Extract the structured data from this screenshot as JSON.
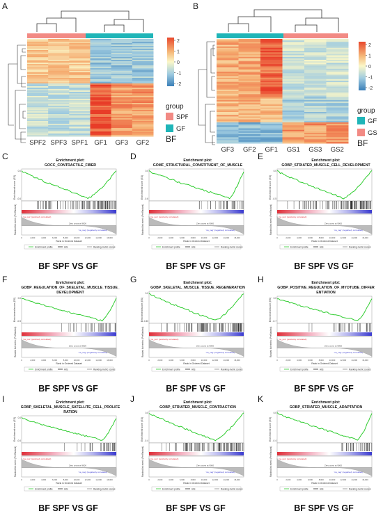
{
  "panels": [
    {
      "letter": "A"
    },
    {
      "letter": "B"
    },
    {
      "letter": "C"
    },
    {
      "letter": "D"
    },
    {
      "letter": "E"
    },
    {
      "letter": "F"
    },
    {
      "letter": "G"
    },
    {
      "letter": "H"
    },
    {
      "letter": "I"
    },
    {
      "letter": "J"
    },
    {
      "letter": "K"
    }
  ],
  "heatmapA": {
    "columns": [
      "SPF2",
      "SPF3",
      "SPF1",
      "GF1",
      "GF3",
      "GF2"
    ],
    "legend_ticks": [
      "2",
      "1",
      "0",
      "-1",
      "-2"
    ],
    "group_title": "group",
    "groups": [
      {
        "name": "SPF",
        "color": "#f28a84"
      },
      {
        "name": "GF",
        "color": "#1fb5b8"
      }
    ],
    "tissue": "BF"
  },
  "heatmapB": {
    "columns": [
      "GF3",
      "GF2",
      "GF1",
      "GS1",
      "GS3",
      "GS2"
    ],
    "legend_ticks": [
      "2",
      "1",
      "0",
      "-1",
      "-2"
    ],
    "group_title": "group",
    "groups": [
      {
        "name": "GF",
        "color": "#1fb5b8"
      },
      {
        "name": "GS",
        "color": "#f28a84"
      }
    ],
    "tissue": "BF"
  },
  "gsea": [
    {
      "letter": "C",
      "header": "Enrichment plot:",
      "title1": "GOCC_CONTRACTILE_FIBER",
      "title2": "",
      "caption": "BF SPF VS GF",
      "mode": "up",
      "ymin": "-0.6"
    },
    {
      "letter": "D",
      "header": "Enrichment plot:",
      "title1": "GOMF_STRUCTURAL_CONSTITUENT_OF_MUSCLE",
      "title2": "",
      "caption": "BF SPF VS GF",
      "mode": "late",
      "ymin": "-0.6"
    },
    {
      "letter": "E",
      "header": "Enrichment plot:",
      "title1": "GOBP_STRIATED_MUSCLE_CELL_DEVELOPMENT",
      "title2": "",
      "caption": "BF SPF VS GF",
      "mode": "up",
      "ymin": "-0.5"
    },
    {
      "letter": "F",
      "header": "Enrichment plot:",
      "title1": "GOBP_REGULATION_OF_SKELETAL_MUSCLE_TISSUE_",
      "title2": "DEVELOPMENT",
      "caption": "BF SPF VS GF",
      "mode": "late",
      "ymin": "-0.5"
    },
    {
      "letter": "G",
      "header": "Enrichment plot:",
      "title1": "GOBP_SKELETAL_MUSCLE_TISSUE_REGENERATION",
      "title2": "",
      "caption": "BF SPF VS GF",
      "mode": "up",
      "ymin": "-0.40"
    },
    {
      "letter": "H",
      "header": "Enrichment plot:",
      "title1": "GOBP_POSITIVE_REGULATION_OF_MYOTUBE_DIFFER",
      "title2": "ENTIATION",
      "caption": "BF SPF VS GF",
      "mode": "late",
      "ymin": "-0.7"
    },
    {
      "letter": "I",
      "header": "Enrichment plot:",
      "title1": "GOBP_SKELETAL_MUSCLE_SATELLITE_CELL_PROLIFE",
      "title2": "RATION",
      "caption": "BF SPF VS GF",
      "mode": "late",
      "ymin": "-0.6"
    },
    {
      "letter": "J",
      "header": "Enrichment plot:",
      "title1": "GOBP_STRIATED_MUSCLE_CONTRACTION",
      "title2": "",
      "caption": "BF SPF VS GF",
      "mode": "up",
      "ymin": "-0.4"
    },
    {
      "letter": "K",
      "header": "Enrichment plot:",
      "title1": "GOBP_STRIATED_MUSCLE_ADAPTATION",
      "title2": "",
      "caption": "BF SPF VS GF",
      "mode": "late",
      "ymin": "-0.4"
    }
  ],
  "gsea_common": {
    "es_axis": "Enrichment score (ES)",
    "rank_axis": "Ranked list metric (PreRanked)",
    "x_axis": "Rank in Ordered Dataset",
    "pos_label": "'na_pos' (positively correlated)",
    "neg_label": "'na_neg' (negatively correlated)",
    "zero_cross": "Zero cross at 9000",
    "x_ticks": [
      "0",
      "2,000",
      "4,000",
      "6,000",
      "8,000",
      "10,000",
      "12,000",
      "14,000",
      "16,000"
    ],
    "legend": [
      "Enrichment profile",
      "Hits",
      "Ranking metric scores"
    ],
    "colors": {
      "es": "#2ecc2e",
      "hit": "#222222",
      "pos": "#e0303a",
      "neg": "#3a3ad0"
    }
  }
}
